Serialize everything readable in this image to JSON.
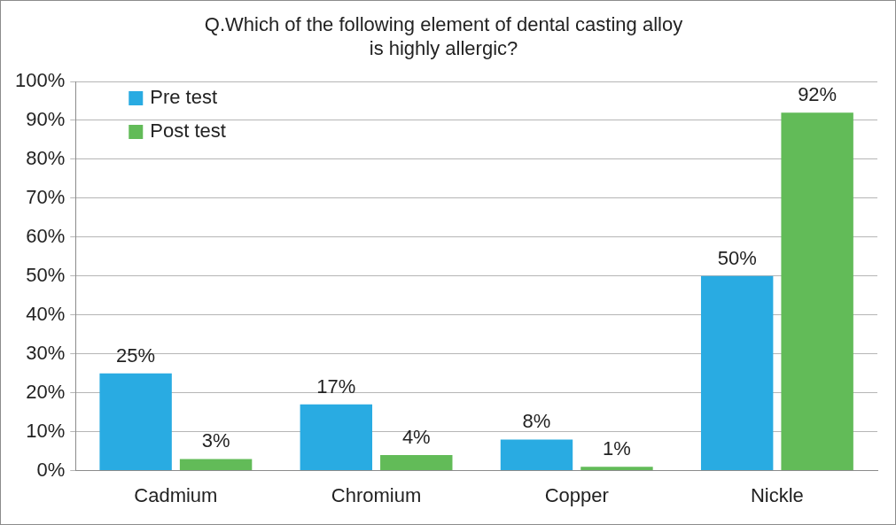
{
  "chart_data": {
    "type": "bar",
    "title": [
      "Q.Which of the following element of dental casting alloy",
      "is highly allergic?"
    ],
    "categories": [
      "Cadmium",
      "Chromium",
      "Copper",
      "Nickle"
    ],
    "series": [
      {
        "name": "Pre test",
        "color": "#29abe2",
        "values": [
          25,
          17,
          8,
          50
        ],
        "value_labels": [
          "25%",
          "17%",
          "8%",
          "50%"
        ]
      },
      {
        "name": "Post test",
        "color": "#62bb58",
        "values": [
          3,
          4,
          1,
          92
        ],
        "value_labels": [
          "3%",
          "4%",
          "1%",
          "92%"
        ]
      }
    ],
    "ylim": [
      0,
      100
    ],
    "yticks": [
      {
        "value": 0,
        "label": "0%"
      },
      {
        "value": 10,
        "label": "10%"
      },
      {
        "value": 20,
        "label": "20%"
      },
      {
        "value": 30,
        "label": "30%"
      },
      {
        "value": 40,
        "label": "40%"
      },
      {
        "value": 50,
        "label": "50%"
      },
      {
        "value": 60,
        "label": "60%"
      },
      {
        "value": 70,
        "label": "70%"
      },
      {
        "value": 80,
        "label": "80%"
      },
      {
        "value": 90,
        "label": "90%"
      },
      {
        "value": 100,
        "label": "100%"
      }
    ],
    "grid": true,
    "legend": "upper left",
    "data_labels": true
  }
}
